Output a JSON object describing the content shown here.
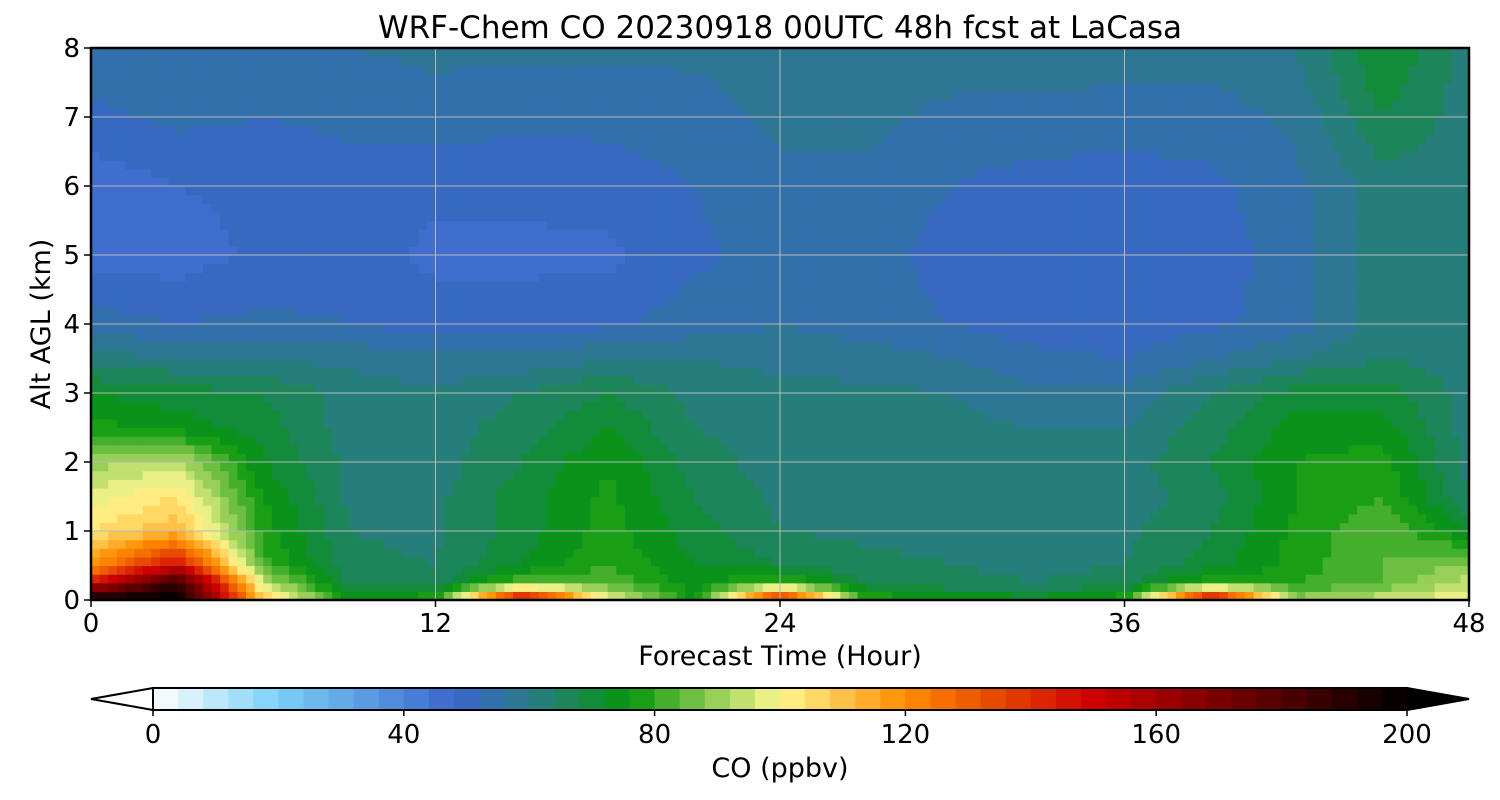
{
  "chart_data": {
    "type": "heatmap",
    "title": "WRF-Chem CO  20230918 00UTC 48h fcst at LaCasa",
    "xlabel": "Forecast Time (Hour)",
    "ylabel": "Alt AGL (km)",
    "xlim": [
      0,
      48
    ],
    "ylim": [
      0,
      8
    ],
    "x_ticks": [
      0,
      12,
      24,
      36,
      48
    ],
    "y_ticks": [
      0,
      1,
      2,
      3,
      4,
      5,
      6,
      7,
      8
    ],
    "grid": true,
    "x": [
      0,
      3,
      6,
      9,
      12,
      15,
      18,
      21,
      24,
      27,
      30,
      33,
      36,
      39,
      42,
      45,
      48
    ],
    "y": [
      0,
      0.25,
      0.5,
      1,
      1.5,
      2,
      2.5,
      3,
      3.5,
      4,
      5,
      6,
      7,
      8
    ],
    "z": [
      [
        200,
        200,
        110,
        76,
        80,
        160,
        100,
        75,
        150,
        80,
        76,
        74,
        80,
        160,
        90,
        95,
        100
      ],
      [
        150,
        190,
        95,
        66,
        66,
        85,
        84,
        74,
        84,
        68,
        65,
        64,
        66,
        80,
        80,
        84,
        94
      ],
      [
        118,
        150,
        82,
        65,
        64,
        72,
        80,
        72,
        68,
        65,
        64,
        63,
        64,
        70,
        78,
        84,
        90
      ],
      [
        104,
        112,
        78,
        64,
        63,
        70,
        78,
        70,
        64,
        63,
        63,
        62,
        63,
        68,
        77,
        84,
        72
      ],
      [
        98,
        104,
        76,
        63,
        63,
        70,
        77,
        68,
        63,
        63,
        62,
        62,
        62,
        66,
        76,
        80,
        64
      ],
      [
        90,
        94,
        72,
        63,
        62,
        68,
        76,
        66,
        62,
        62,
        62,
        61,
        62,
        68,
        76,
        78,
        62
      ],
      [
        78,
        74,
        70,
        62,
        62,
        66,
        72,
        64,
        62,
        62,
        61,
        60,
        60,
        66,
        74,
        74,
        62
      ],
      [
        72,
        70,
        68,
        62,
        61,
        64,
        68,
        63,
        61,
        61,
        60,
        57,
        57,
        64,
        70,
        70,
        62
      ],
      [
        62,
        60,
        60,
        59,
        57,
        57,
        60,
        60,
        59,
        58,
        56,
        53,
        52,
        56,
        60,
        64,
        62
      ],
      [
        54,
        52,
        53,
        52,
        50,
        50,
        51,
        54,
        56,
        54,
        52,
        50,
        50,
        51,
        54,
        62,
        62
      ],
      [
        46,
        46,
        49,
        50,
        47,
        47,
        47,
        51,
        54,
        54,
        50,
        49,
        49,
        50,
        54,
        62,
        62
      ],
      [
        45,
        48,
        49,
        50,
        49,
        49,
        50,
        52,
        55,
        55,
        52,
        50,
        50,
        51,
        55,
        62,
        62
      ],
      [
        51,
        53,
        52,
        53,
        54,
        53,
        53,
        54,
        57,
        57,
        55,
        55,
        54,
        54,
        57,
        68,
        62
      ],
      [
        54,
        56,
        55,
        56,
        57,
        57,
        57,
        57,
        58,
        58,
        58,
        58,
        58,
        58,
        60,
        72,
        62
      ]
    ],
    "colorbar": {
      "label": "CO  (ppbv)",
      "ticks": [
        0,
        40,
        80,
        120,
        160,
        200
      ],
      "min": 0,
      "max": 200,
      "step": 4,
      "extend": "both",
      "stops": [
        {
          "v": 0,
          "c": "#ffffff"
        },
        {
          "v": 20,
          "c": "#7ad0f7"
        },
        {
          "v": 48,
          "c": "#3a66cc"
        },
        {
          "v": 60,
          "c": "#2a7a8a"
        },
        {
          "v": 76,
          "c": "#05960a"
        },
        {
          "v": 100,
          "c": "#fff890"
        },
        {
          "v": 120,
          "c": "#ff8c00"
        },
        {
          "v": 150,
          "c": "#cc0000"
        },
        {
          "v": 200,
          "c": "#000000"
        }
      ]
    }
  }
}
